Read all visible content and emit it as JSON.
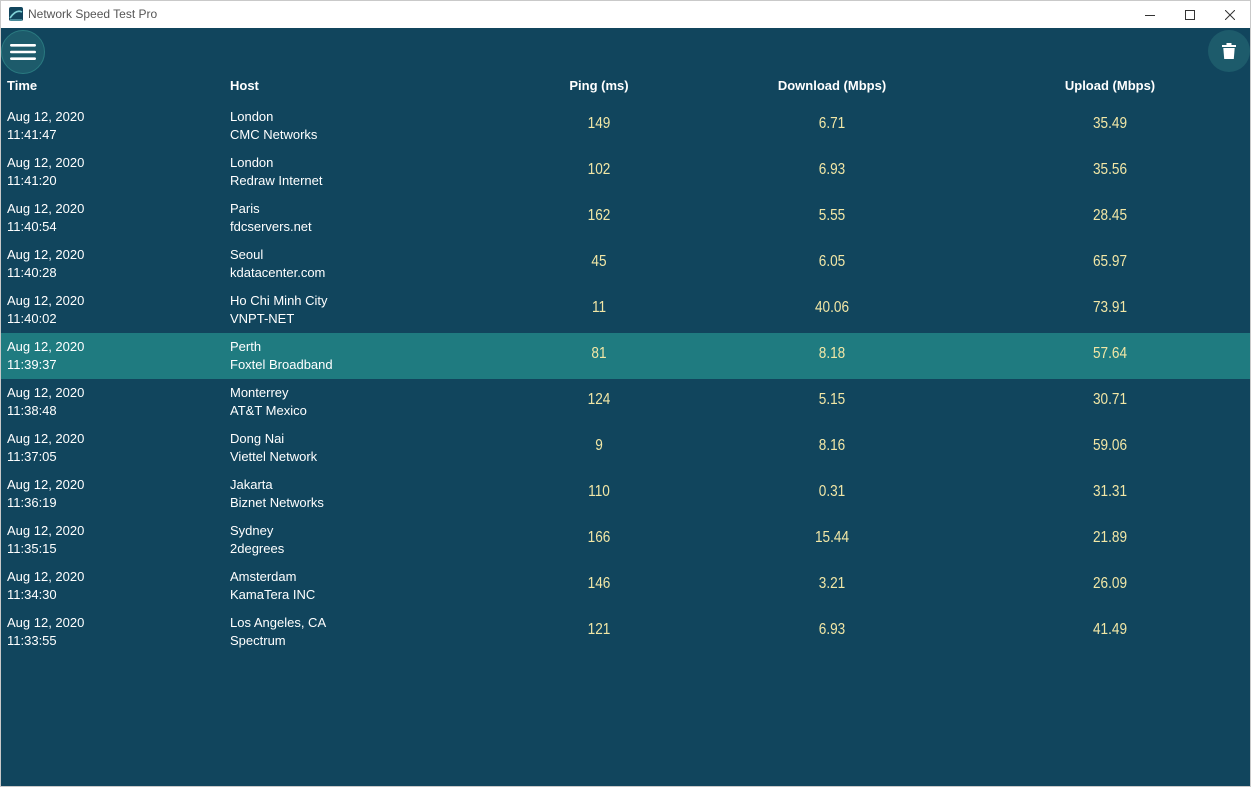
{
  "window": {
    "title": "Network Speed Test Pro"
  },
  "toolbar": {
    "menu_icon": "hamburger-menu-icon",
    "delete_icon": "trash-icon"
  },
  "columns": {
    "time": "Time",
    "host": "Host",
    "ping": "Ping (ms)",
    "download": "Download (Mbps)",
    "upload": "Upload (Mbps)"
  },
  "results": [
    {
      "date": "Aug 12, 2020",
      "time": "11:41:47",
      "city": "London",
      "provider": "CMC Networks",
      "ping": "149",
      "download": "6.71",
      "upload": "35.49"
    },
    {
      "date": "Aug 12, 2020",
      "time": "11:41:20",
      "city": "London",
      "provider": "Redraw Internet",
      "ping": "102",
      "download": "6.93",
      "upload": "35.56"
    },
    {
      "date": "Aug 12, 2020",
      "time": "11:40:54",
      "city": "Paris",
      "provider": "fdcservers.net",
      "ping": "162",
      "download": "5.55",
      "upload": "28.45"
    },
    {
      "date": "Aug 12, 2020",
      "time": "11:40:28",
      "city": "Seoul",
      "provider": "kdatacenter.com",
      "ping": "45",
      "download": "6.05",
      "upload": "65.97"
    },
    {
      "date": "Aug 12, 2020",
      "time": "11:40:02",
      "city": "Ho Chi Minh City",
      "provider": "VNPT-NET",
      "ping": "11",
      "download": "40.06",
      "upload": "73.91"
    },
    {
      "date": "Aug 12, 2020",
      "time": "11:39:37",
      "city": "Perth",
      "provider": "Foxtel Broadband",
      "ping": "81",
      "download": "8.18",
      "upload": "57.64"
    },
    {
      "date": "Aug 12, 2020",
      "time": "11:38:48",
      "city": "Monterrey",
      "provider": "AT&T Mexico",
      "ping": "124",
      "download": "5.15",
      "upload": "30.71"
    },
    {
      "date": "Aug 12, 2020",
      "time": "11:37:05",
      "city": "Dong Nai",
      "provider": "Viettel Network",
      "ping": "9",
      "download": "8.16",
      "upload": "59.06"
    },
    {
      "date": "Aug 12, 2020",
      "time": "11:36:19",
      "city": "Jakarta",
      "provider": "Biznet Networks",
      "ping": "110",
      "download": "0.31",
      "upload": "31.31"
    },
    {
      "date": "Aug 12, 2020",
      "time": "11:35:15",
      "city": "Sydney",
      "provider": "2degrees",
      "ping": "166",
      "download": "15.44",
      "upload": "21.89"
    },
    {
      "date": "Aug 12, 2020",
      "time": "11:34:30",
      "city": "Amsterdam",
      "provider": "KamaTera INC",
      "ping": "146",
      "download": "3.21",
      "upload": "26.09"
    },
    {
      "date": "Aug 12, 2020",
      "time": "11:33:55",
      "city": "Los Angeles, CA",
      "provider": "Spectrum",
      "ping": "121",
      "download": "6.93",
      "upload": "41.49"
    }
  ],
  "selected_row": 5,
  "colors": {
    "background": "#11455d",
    "selected_row": "#1f7b80",
    "number_text": "#f2e7a6",
    "text": "#ffffff"
  }
}
